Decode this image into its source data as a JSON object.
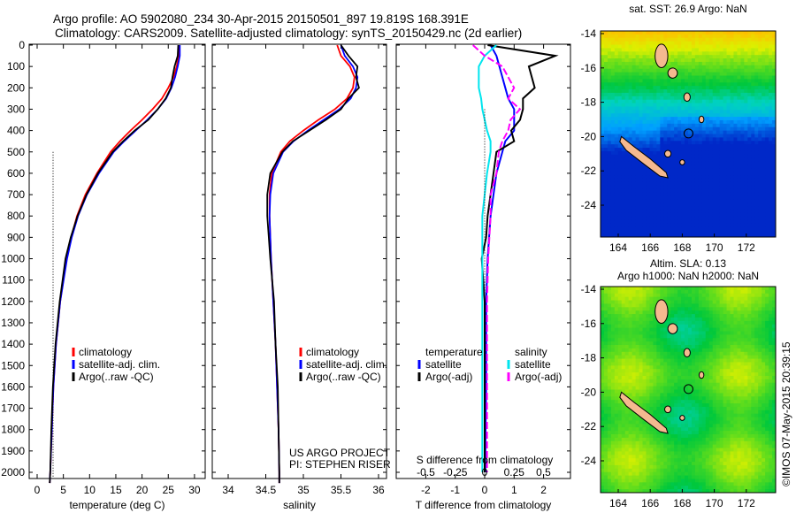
{
  "title_line1": "Argo profile: AO 5902080_234 30-Apr-2015 20150501_897 19.819S 168.391E",
  "title_line2": "Climatology: CARS2009. Satellite-adjusted climatology: synTS_20150429.nc (2d earlier)",
  "colors": {
    "climatology": "#ff0000",
    "satellite": "#0000ff",
    "argo": "#000000",
    "sal_satellite": "#00e5ee",
    "sal_argo": "#ff00ff"
  },
  "chart_data": [
    {
      "type": "line",
      "xlabel": "temperature (deg C)",
      "ylabel": "",
      "xlim": [
        -0.5,
        31
      ],
      "ylim": [
        2060,
        0
      ],
      "xticks": [
        "0",
        "5",
        "10",
        "15",
        "20",
        "25",
        "30"
      ],
      "xtickvals": [
        0,
        5,
        10,
        15,
        20,
        25,
        30
      ],
      "yticks": [
        "0",
        "100",
        "200",
        "300",
        "400",
        "500",
        "600",
        "700",
        "800",
        "900",
        "1000",
        "1100",
        "1200",
        "1300",
        "1400",
        "1500",
        "1600",
        "1700",
        "1800",
        "1900",
        "2000"
      ],
      "legend": [
        "climatology",
        "satellite-adj. clim.",
        "Argo(..raw -QC)"
      ],
      "depth": [
        0,
        50,
        100,
        150,
        200,
        250,
        300,
        350,
        400,
        450,
        500,
        600,
        700,
        800,
        900,
        1000,
        1200,
        1400,
        1600,
        1800,
        2000,
        2050
      ],
      "series": [
        {
          "name": "climatology",
          "values": [
            27,
            27,
            26.6,
            26,
            25,
            23.8,
            22,
            20,
            17.8,
            15.8,
            14,
            11.4,
            9.2,
            7.6,
            6.5,
            5.6,
            4.4,
            3.6,
            3.1,
            2.8,
            2.5,
            2.4
          ]
        },
        {
          "name": "satellite-adj. clim.",
          "values": [
            27.2,
            27.2,
            26.8,
            26.3,
            25.6,
            24.6,
            23,
            21,
            18.8,
            16.6,
            14.6,
            11.8,
            9.5,
            7.8,
            6.6,
            5.7,
            4.4,
            3.6,
            3.1,
            2.8,
            2.5,
            2.4
          ]
        },
        {
          "name": "Argo(..raw -QC)",
          "values": [
            26.9,
            26.8,
            26.2,
            25.8,
            25.5,
            24.5,
            23,
            21.2,
            18.6,
            16.4,
            14.4,
            11.6,
            9.4,
            7.7,
            6.4,
            5.4,
            4.3,
            3.5,
            3.0,
            2.7,
            2.5,
            2.4
          ]
        }
      ]
    },
    {
      "type": "line",
      "xlabel": "salinity",
      "xlim": [
        33.8,
        36.1
      ],
      "ylim": [
        2060,
        0
      ],
      "xticks": [
        "34",
        "34.5",
        "35",
        "35.5",
        "36"
      ],
      "xtickvals": [
        34,
        34.5,
        35,
        35.5,
        36
      ],
      "legend": [
        "climatology",
        "satellite-adj. clim.",
        "Argo(..raw -QC)"
      ],
      "annotation": [
        "US ARGO PROJECT",
        "PI: STEPHEN RISER"
      ],
      "depth": [
        0,
        50,
        100,
        150,
        200,
        250,
        300,
        350,
        400,
        450,
        500,
        600,
        700,
        800,
        900,
        1000,
        1200,
        1400,
        1600,
        1800,
        2000,
        2050
      ],
      "series": [
        {
          "name": "climatology",
          "values": [
            35.45,
            35.5,
            35.62,
            35.68,
            35.66,
            35.58,
            35.42,
            35.2,
            35.0,
            34.82,
            34.7,
            34.58,
            34.55,
            34.55,
            34.56,
            34.57,
            34.6,
            34.63,
            34.65,
            34.67,
            34.68,
            34.68
          ]
        },
        {
          "name": "satellite-adj. clim.",
          "values": [
            35.5,
            35.55,
            35.66,
            35.72,
            35.7,
            35.63,
            35.48,
            35.27,
            35.06,
            34.87,
            34.73,
            34.6,
            34.56,
            34.55,
            34.56,
            34.57,
            34.6,
            34.63,
            34.65,
            34.67,
            34.68,
            34.68
          ]
        },
        {
          "name": "Argo(..raw -QC)",
          "values": [
            35.5,
            35.6,
            35.72,
            35.7,
            35.74,
            35.6,
            35.5,
            35.3,
            35.08,
            34.86,
            34.72,
            34.56,
            34.52,
            34.52,
            34.54,
            34.56,
            34.61,
            34.63,
            34.66,
            34.67,
            34.68,
            34.68
          ]
        }
      ]
    },
    {
      "type": "line",
      "xlabel": "T difference from climatology",
      "xlabel2": "S difference from climatology",
      "xlim": [
        -3,
        3
      ],
      "ylim": [
        2060,
        0
      ],
      "xticks": [
        "-2",
        "-1",
        "0",
        "1",
        "2"
      ],
      "xtickvals": [
        -2,
        -1,
        0,
        1,
        2
      ],
      "xticks2": [
        "-0.5",
        "-0.25",
        "0",
        "0.25",
        "0.5"
      ],
      "xtickvals2": [
        -0.5,
        -0.25,
        0,
        0.25,
        0.5
      ],
      "legend_temperature": {
        "title": "temperature",
        "items": [
          "satellite",
          "Argo(-adj)"
        ]
      },
      "legend_salinity": {
        "title": "salinity",
        "items": [
          "satellite",
          "Argo(-adj)"
        ]
      },
      "depth": [
        0,
        50,
        100,
        150,
        200,
        250,
        300,
        350,
        400,
        450,
        500,
        600,
        700,
        800,
        900,
        1000,
        1200,
        1400,
        1600,
        1800,
        2000
      ],
      "series": [
        {
          "name": "T satellite",
          "values": [
            0.2,
            0.4,
            0.5,
            0.6,
            0.7,
            0.8,
            1.0,
            1.0,
            1.0,
            0.7,
            0.6,
            0.4,
            0.3,
            0.2,
            0.15,
            0.1,
            0.05,
            0.05,
            0.05,
            0.03,
            0.02
          ]
        },
        {
          "name": "T Argo(-adj)",
          "values": [
            0.1,
            2.4,
            1.5,
            1.6,
            1.7,
            1.3,
            1.3,
            1.2,
            0.9,
            1.0,
            0.4,
            0.3,
            0.2,
            0.1,
            0.05,
            -0.1,
            0,
            0,
            0,
            0,
            0
          ]
        },
        {
          "name": "S satellite",
          "values": [
            0.1,
            0,
            -0.05,
            -0.05,
            -0.05,
            -0.03,
            -0.02,
            0,
            0.02,
            0.05,
            0.05,
            0.02,
            0,
            -0.02,
            -0.02,
            -0.02,
            -0.02,
            -0.02,
            -0.02,
            -0.02,
            -0.02
          ]
        },
        {
          "name": "S Argo(-adj)",
          "values": [
            -0.1,
            0,
            0.15,
            0.2,
            0.25,
            0.2,
            0.3,
            0.22,
            0.2,
            0.15,
            0.12,
            0.1,
            0.05,
            0.05,
            0.04,
            0.03,
            0.02,
            0.02,
            0.02,
            0.02,
            0.02
          ]
        }
      ]
    },
    {
      "type": "heatmap",
      "title": "sat. SST: 26.9 Argo: NaN",
      "xticks": [
        "164",
        "166",
        "168",
        "170",
        "172"
      ],
      "yticks": [
        "-14",
        "-16",
        "-18",
        "-20",
        "-22",
        "-24"
      ]
    },
    {
      "type": "heatmap",
      "title": "Altim. SLA: 0.13",
      "title2": "Argo h1000: NaN h2000: NaN",
      "xticks": [
        "164",
        "166",
        "168",
        "170",
        "172"
      ],
      "yticks": [
        "-14",
        "-16",
        "-18",
        "-20",
        "-22",
        "-24"
      ]
    }
  ],
  "stamp": "©IMOS 07-May-2015 20:39:15"
}
